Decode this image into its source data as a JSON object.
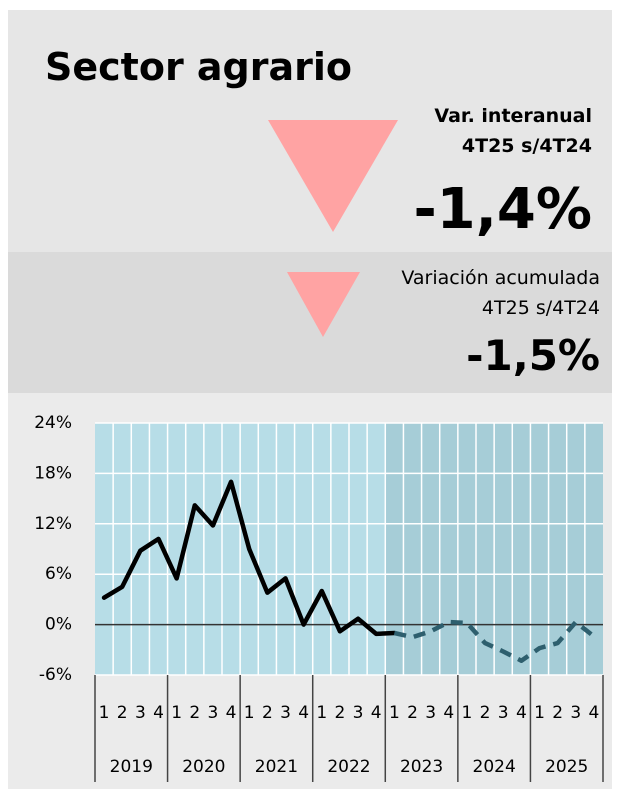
{
  "header": {
    "title": "Sector agrario",
    "main": {
      "label": "Var. interanual",
      "period": "4T25 s/4T24",
      "value": "-1,4%"
    },
    "cumulative": {
      "label": "Variación acumulada",
      "period": "4T25 s/4T24",
      "value": "-1,5%"
    }
  },
  "chart_data": {
    "type": "line",
    "categories": [
      "1",
      "2",
      "3",
      "4",
      "1",
      "2",
      "3",
      "4",
      "1",
      "2",
      "3",
      "4",
      "1",
      "2",
      "3",
      "4",
      "1",
      "2",
      "3",
      "4",
      "1",
      "2",
      "3",
      "4",
      "1",
      "2",
      "3",
      "4"
    ],
    "years": [
      "2019",
      "2020",
      "2021",
      "2022",
      "2023",
      "2024",
      "2025"
    ],
    "series": [
      {
        "color": "#000000",
        "style": "solid",
        "values": [
          3.2,
          4.5,
          8.8,
          10.2,
          5.5,
          14.2,
          11.8,
          17,
          9,
          3.8,
          5.5,
          0,
          4,
          -0.8,
          0.7,
          -1.1,
          -1,
          null,
          null,
          null,
          null,
          null,
          null,
          null,
          null,
          null,
          null,
          null
        ]
      },
      {
        "color": "#2e5f6e",
        "style": "dashed",
        "values": [
          null,
          null,
          null,
          null,
          null,
          null,
          null,
          null,
          null,
          null,
          null,
          null,
          null,
          null,
          null,
          null,
          -1,
          -1.5,
          -0.8,
          0.3,
          0.2,
          -2.2,
          -3.2,
          -4.3,
          -2.8,
          -2.2,
          0.3,
          -1.4
        ]
      }
    ],
    "ylim": [
      -6,
      24
    ],
    "yticks": [
      {
        "value": -6,
        "label": "-6%"
      },
      {
        "value": 0,
        "label": "0%"
      },
      {
        "value": 6,
        "label": "6%"
      },
      {
        "value": 12,
        "label": "12%"
      },
      {
        "value": 18,
        "label": "18%"
      },
      {
        "value": 24,
        "label": "24%"
      }
    ],
    "grid": true,
    "plot_color": "#b7dde7",
    "shade_color": "#a6cdd7"
  }
}
